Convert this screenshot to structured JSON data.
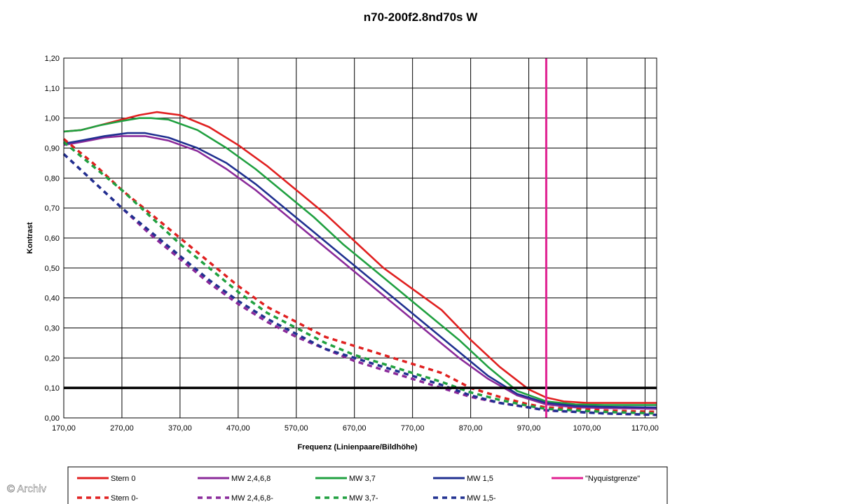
{
  "watermark": "© Archiv",
  "chart_data": {
    "type": "line",
    "title": "n70-200f2.8nd70s W",
    "xlabel": "Frequenz (Linienpaare/Bildhöhe)",
    "ylabel": "Kontrast",
    "xlim": [
      170,
      1190
    ],
    "ylim": [
      0,
      1.2
    ],
    "x_ticks": [
      "170,00",
      "270,00",
      "370,00",
      "470,00",
      "570,00",
      "670,00",
      "770,00",
      "870,00",
      "970,00",
      "1070,00",
      "1170,00"
    ],
    "y_ticks": [
      "0,00",
      "0,10",
      "0,20",
      "0,30",
      "0,40",
      "0,50",
      "0,60",
      "0,70",
      "0,80",
      "0,90",
      "1,00",
      "1,10",
      "1,20"
    ],
    "grid": true,
    "legend_position": "bottom",
    "reference_lines": [
      {
        "orientation": "horizontal",
        "value": 0.1,
        "color": "#000000"
      },
      {
        "orientation": "vertical",
        "value": 1000,
        "color": "#e02090",
        "series": "\"Nyquistgrenze\""
      }
    ],
    "series": [
      {
        "name": "Stern 0",
        "color": "#e02020",
        "dash": false,
        "x": [
          170,
          200,
          230,
          270,
          300,
          330,
          370,
          420,
          470,
          520,
          570,
          620,
          670,
          720,
          770,
          820,
          870,
          920,
          970,
          1000,
          1030,
          1070,
          1120,
          1190
        ],
        "y": [
          0.955,
          0.96,
          0.975,
          0.995,
          1.01,
          1.02,
          1.01,
          0.97,
          0.91,
          0.84,
          0.76,
          0.68,
          0.59,
          0.5,
          0.43,
          0.36,
          0.26,
          0.17,
          0.095,
          0.068,
          0.055,
          0.05,
          0.05,
          0.05
        ]
      },
      {
        "name": "MW 2,4,6,8",
        "color": "#8a2a9a",
        "dash": false,
        "x": [
          170,
          200,
          240,
          270,
          310,
          350,
          400,
          450,
          500,
          550,
          600,
          650,
          700,
          750,
          800,
          850,
          900,
          950,
          1000,
          1050,
          1100,
          1190
        ],
        "y": [
          0.91,
          0.92,
          0.935,
          0.94,
          0.94,
          0.925,
          0.89,
          0.83,
          0.76,
          0.68,
          0.6,
          0.52,
          0.44,
          0.36,
          0.28,
          0.2,
          0.13,
          0.075,
          0.045,
          0.035,
          0.033,
          0.03
        ]
      },
      {
        "name": "MW 3,7",
        "color": "#20a040",
        "dash": false,
        "x": [
          170,
          200,
          230,
          270,
          300,
          320,
          350,
          400,
          450,
          500,
          550,
          600,
          650,
          700,
          750,
          800,
          850,
          900,
          950,
          1000,
          1050,
          1100,
          1190
        ],
        "y": [
          0.955,
          0.96,
          0.975,
          0.99,
          1.0,
          1.0,
          0.995,
          0.96,
          0.9,
          0.83,
          0.75,
          0.67,
          0.58,
          0.5,
          0.42,
          0.34,
          0.26,
          0.17,
          0.09,
          0.055,
          0.045,
          0.043,
          0.043
        ]
      },
      {
        "name": "MW 1,5",
        "color": "#203090",
        "dash": false,
        "x": [
          170,
          200,
          240,
          280,
          310,
          350,
          400,
          450,
          500,
          550,
          600,
          650,
          700,
          750,
          800,
          850,
          900,
          950,
          1000,
          1050,
          1100,
          1190
        ],
        "y": [
          0.915,
          0.925,
          0.94,
          0.95,
          0.95,
          0.935,
          0.9,
          0.85,
          0.78,
          0.7,
          0.62,
          0.54,
          0.46,
          0.38,
          0.3,
          0.22,
          0.14,
          0.08,
          0.05,
          0.04,
          0.037,
          0.035
        ]
      },
      {
        "name": "\"Nyquistgrenze\"",
        "color": "#e02090",
        "dash": false,
        "x": [
          1000,
          1000
        ],
        "y": [
          0,
          1.2
        ]
      },
      {
        "name": "Stern 0-",
        "color": "#e02020",
        "dash": true,
        "x": [
          170,
          220,
          270,
          320,
          370,
          420,
          470,
          520,
          570,
          620,
          670,
          720,
          770,
          820,
          870,
          920,
          970,
          1000,
          1050,
          1100,
          1190
        ],
        "y": [
          0.93,
          0.85,
          0.76,
          0.68,
          0.6,
          0.52,
          0.44,
          0.37,
          0.32,
          0.27,
          0.24,
          0.21,
          0.18,
          0.15,
          0.1,
          0.07,
          0.045,
          0.035,
          0.03,
          0.025,
          0.02
        ]
      },
      {
        "name": "MW 2,4,6,8-",
        "color": "#8a2a9a",
        "dash": true,
        "x": [
          170,
          220,
          270,
          320,
          370,
          420,
          470,
          520,
          570,
          620,
          670,
          720,
          770,
          820,
          870,
          920,
          970,
          1000,
          1050,
          1100,
          1190
        ],
        "y": [
          0.88,
          0.79,
          0.7,
          0.61,
          0.53,
          0.45,
          0.38,
          0.32,
          0.27,
          0.23,
          0.19,
          0.16,
          0.13,
          0.1,
          0.07,
          0.05,
          0.035,
          0.025,
          0.02,
          0.015,
          0.01
        ]
      },
      {
        "name": "MW 3,7-",
        "color": "#20a040",
        "dash": true,
        "x": [
          170,
          220,
          270,
          320,
          370,
          420,
          470,
          520,
          570,
          620,
          670,
          720,
          770,
          820,
          870,
          920,
          970,
          1000,
          1050,
          1100,
          1190
        ],
        "y": [
          0.92,
          0.84,
          0.76,
          0.67,
          0.58,
          0.5,
          0.42,
          0.35,
          0.3,
          0.25,
          0.21,
          0.18,
          0.15,
          0.12,
          0.085,
          0.06,
          0.04,
          0.03,
          0.025,
          0.02,
          0.015
        ]
      },
      {
        "name": "MW 1,5-",
        "color": "#203090",
        "dash": true,
        "x": [
          170,
          220,
          270,
          320,
          370,
          420,
          470,
          520,
          570,
          620,
          670,
          720,
          770,
          820,
          870,
          920,
          970,
          1000,
          1050,
          1100,
          1190
        ],
        "y": [
          0.88,
          0.79,
          0.7,
          0.62,
          0.54,
          0.46,
          0.39,
          0.33,
          0.28,
          0.23,
          0.2,
          0.17,
          0.14,
          0.11,
          0.075,
          0.05,
          0.035,
          0.025,
          0.02,
          0.015,
          0.01
        ]
      }
    ]
  }
}
